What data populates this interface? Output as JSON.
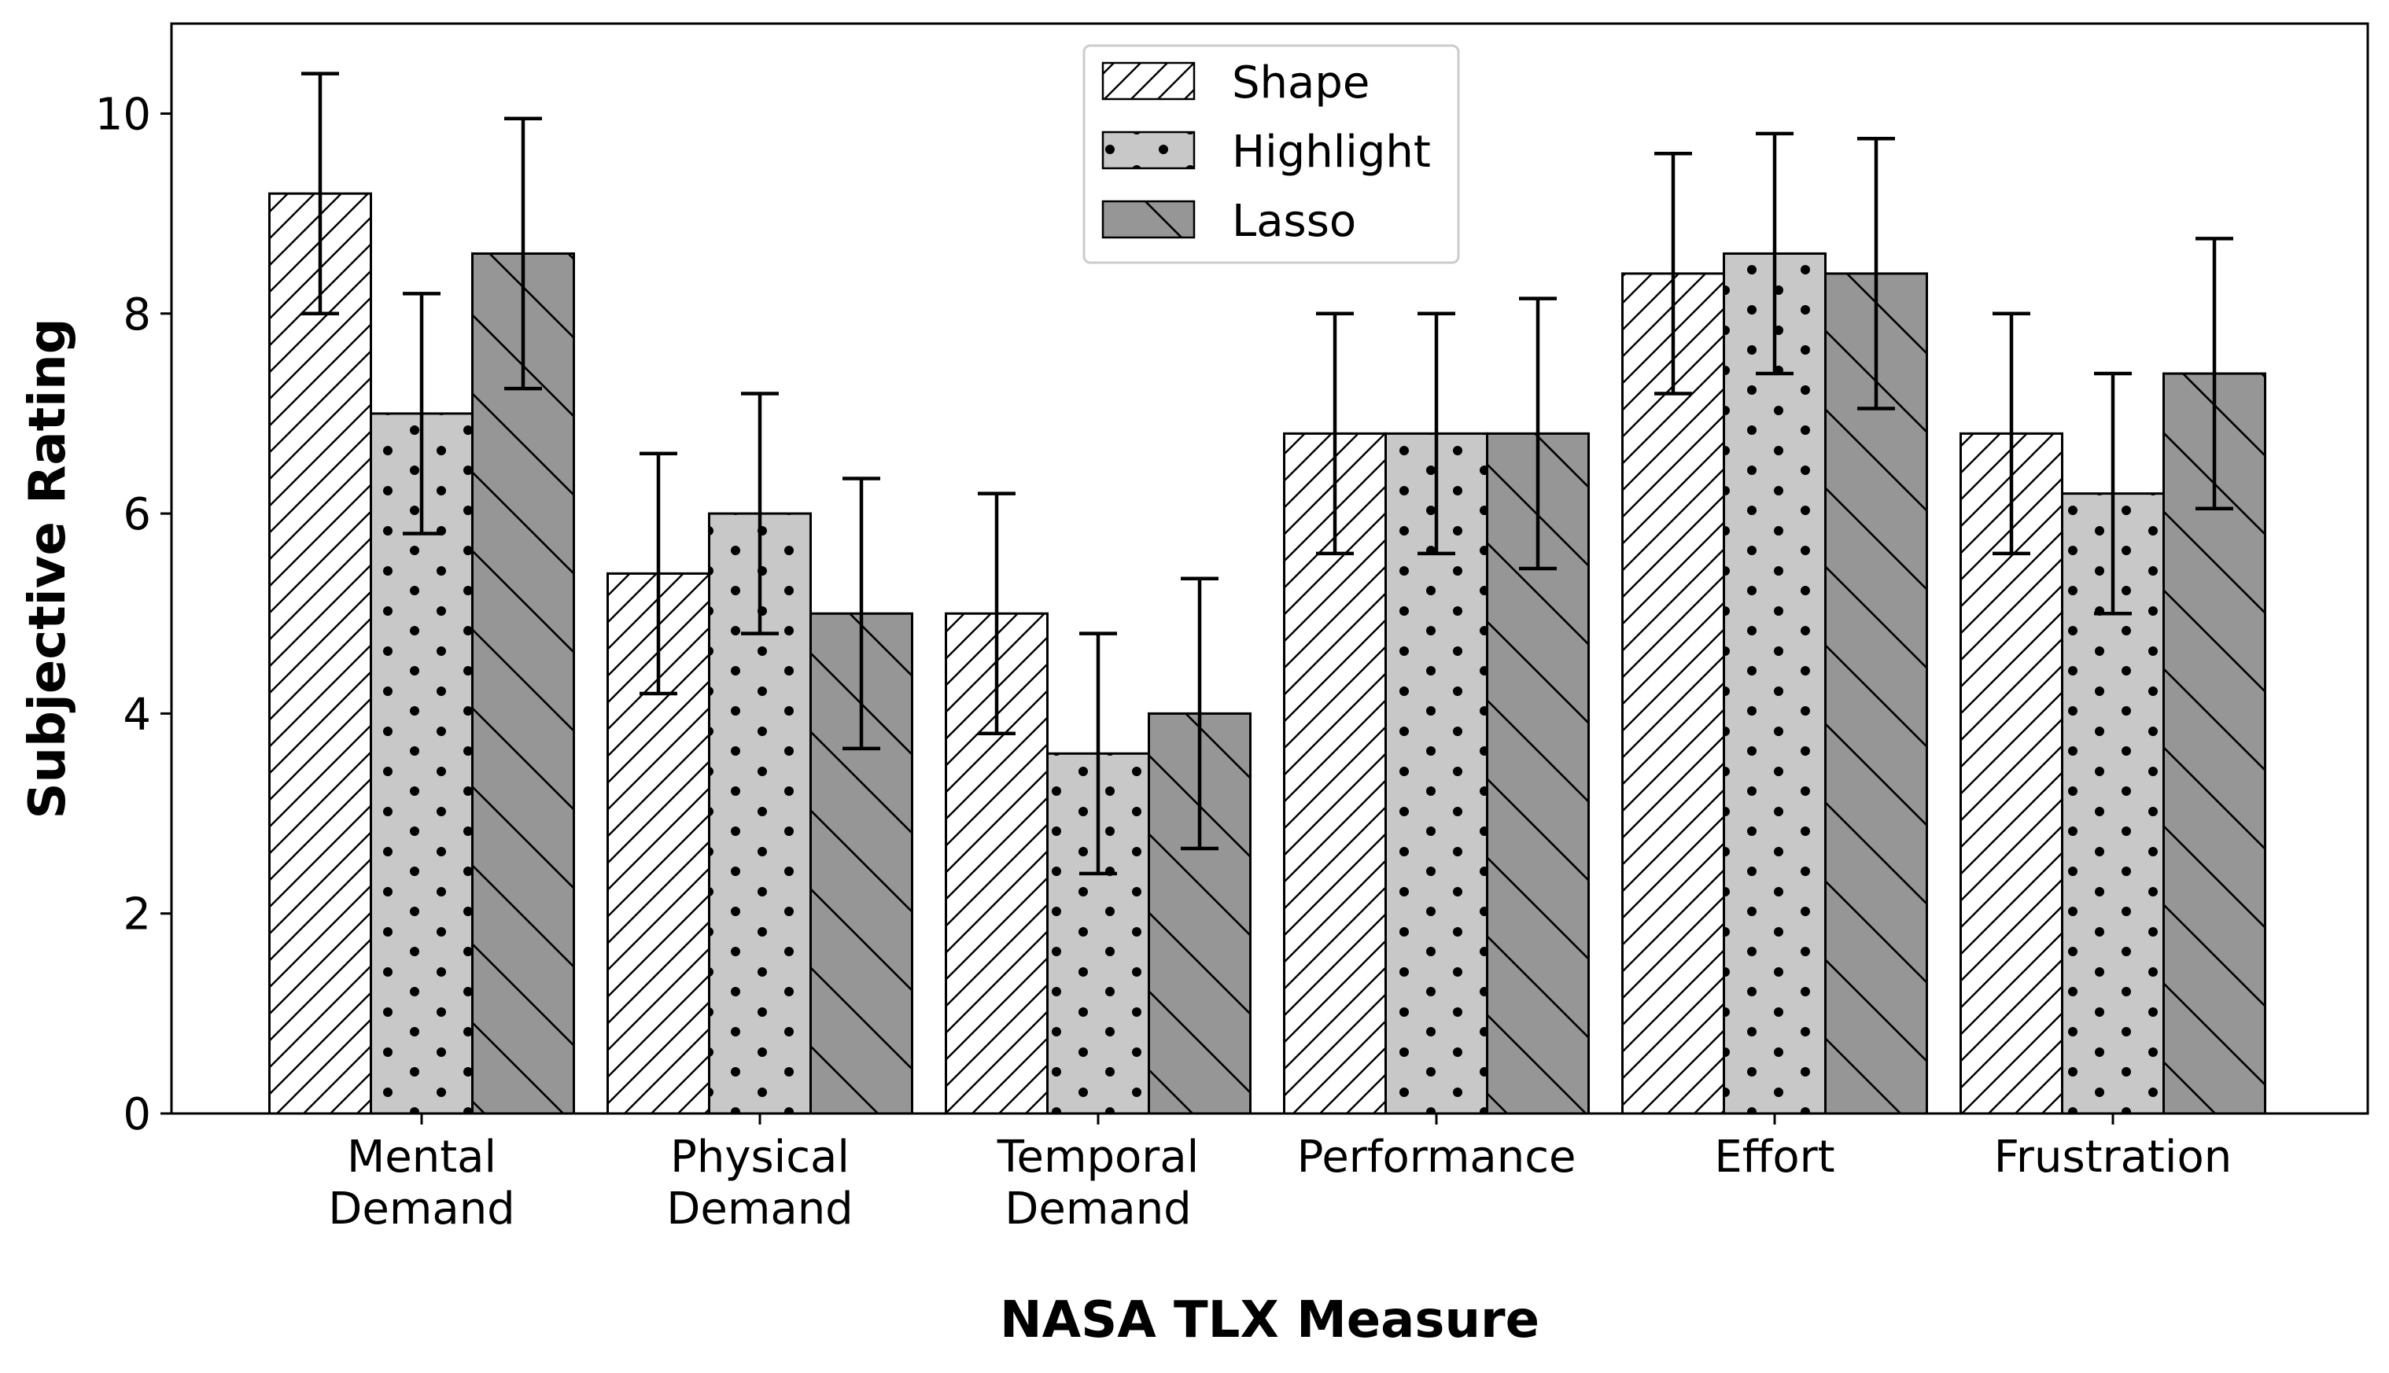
{
  "chart_data": {
    "type": "bar",
    "title": "",
    "xlabel": "NASA TLX Measure",
    "ylabel": "Subjective Rating",
    "categories": [
      [
        "Mental",
        "Demand"
      ],
      [
        "Physical",
        "Demand"
      ],
      [
        "Temporal",
        "Demand"
      ],
      [
        "Performance"
      ],
      [
        "Effort"
      ],
      [
        "Frustration"
      ]
    ],
    "ylim": [
      0,
      10.9
    ],
    "yticks": [
      "0",
      "2",
      "4",
      "6",
      "8",
      "10"
    ],
    "legend_position": "top-center",
    "grid": false,
    "series": [
      {
        "name": "Shape",
        "pattern": "diagonal-forward",
        "fill": "#ffffff",
        "values": [
          9.2,
          5.4,
          5.0,
          6.8,
          8.4,
          6.8
        ],
        "errors": [
          1.2,
          1.2,
          1.2,
          1.2,
          1.2,
          1.2
        ]
      },
      {
        "name": "Highlight",
        "pattern": "dots",
        "fill": "#c8c8c8",
        "values": [
          7.0,
          6.0,
          3.6,
          6.8,
          8.6,
          6.2
        ],
        "errors": [
          1.2,
          1.2,
          1.2,
          1.2,
          1.2,
          1.2
        ]
      },
      {
        "name": "Lasso",
        "pattern": "diagonal-backward",
        "fill": "#969696",
        "values": [
          8.6,
          5.0,
          4.0,
          6.8,
          8.4,
          7.4
        ],
        "errors": [
          1.35,
          1.35,
          1.35,
          1.35,
          1.35,
          1.35
        ]
      }
    ]
  }
}
